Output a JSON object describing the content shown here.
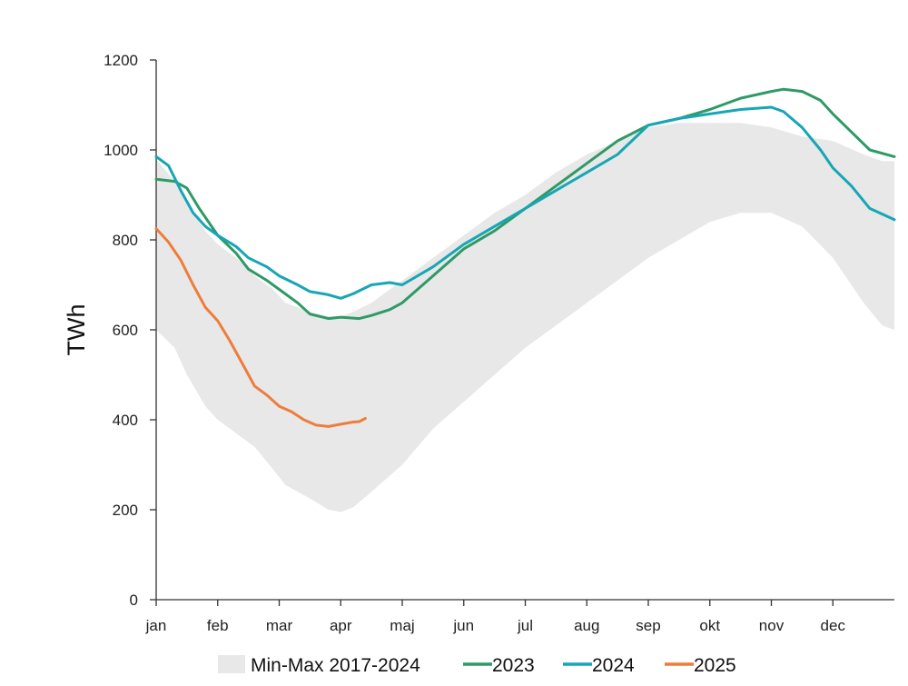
{
  "chart_data": {
    "type": "line",
    "ylabel": "TWh",
    "xlabel": "",
    "ylim": [
      0,
      1200
    ],
    "yticks": [
      0,
      200,
      400,
      600,
      800,
      1000,
      1200
    ],
    "x_months": [
      "jan",
      "feb",
      "mar",
      "apr",
      "maj",
      "jun",
      "jul",
      "aug",
      "sep",
      "okt",
      "nov",
      "dec"
    ],
    "x_month_index_max": 12,
    "grid": false,
    "legend_position": "bottom",
    "band": {
      "name": "Min-Max 2017-2024",
      "color": "#e8e8e8",
      "x": [
        0,
        0.3,
        0.5,
        0.8,
        1.0,
        1.3,
        1.6,
        1.9,
        2.1,
        2.5,
        2.8,
        3.0,
        3.2,
        3.5,
        4.0,
        4.5,
        5.0,
        5.5,
        6.0,
        6.5,
        7.0,
        7.5,
        8.0,
        8.5,
        9.0,
        9.5,
        10.0,
        10.5,
        11.0,
        11.5,
        11.8,
        12.0
      ],
      "min": [
        600,
        560,
        500,
        430,
        400,
        370,
        340,
        290,
        255,
        225,
        200,
        195,
        205,
        240,
        300,
        380,
        440,
        500,
        560,
        610,
        660,
        710,
        760,
        800,
        840,
        860,
        860,
        830,
        760,
        660,
        610,
        600
      ],
      "max": [
        980,
        930,
        880,
        820,
        790,
        760,
        720,
        690,
        660,
        640,
        630,
        630,
        640,
        660,
        710,
        760,
        810,
        860,
        900,
        950,
        990,
        1020,
        1050,
        1060,
        1060,
        1060,
        1050,
        1030,
        1020,
        990,
        975,
        975
      ]
    },
    "series": [
      {
        "name": "2023",
        "color": "#2e9a66",
        "x": [
          0,
          0.3,
          0.5,
          0.7,
          1.0,
          1.3,
          1.5,
          1.8,
          2.0,
          2.3,
          2.5,
          2.8,
          3.0,
          3.3,
          3.5,
          3.8,
          4.0,
          4.5,
          5.0,
          5.5,
          6.0,
          6.5,
          7.0,
          7.5,
          8.0,
          8.5,
          9.0,
          9.5,
          10.0,
          10.2,
          10.5,
          10.8,
          11.0,
          11.3,
          11.6,
          12.0
        ],
        "values": [
          935,
          930,
          915,
          870,
          810,
          770,
          735,
          710,
          690,
          660,
          635,
          625,
          628,
          625,
          632,
          645,
          660,
          720,
          780,
          820,
          870,
          920,
          970,
          1020,
          1055,
          1070,
          1090,
          1115,
          1130,
          1135,
          1130,
          1110,
          1080,
          1040,
          1000,
          985
        ]
      },
      {
        "name": "2024",
        "color": "#17a6b5",
        "x": [
          0,
          0.2,
          0.4,
          0.6,
          0.8,
          1.0,
          1.3,
          1.5,
          1.8,
          2.0,
          2.3,
          2.5,
          2.8,
          3.0,
          3.2,
          3.5,
          3.8,
          4.0,
          4.5,
          5.0,
          5.5,
          6.0,
          6.5,
          7.0,
          7.5,
          8.0,
          8.5,
          9.0,
          9.5,
          10.0,
          10.2,
          10.5,
          10.8,
          11.0,
          11.3,
          11.6,
          12.0
        ],
        "values": [
          985,
          965,
          910,
          860,
          830,
          810,
          785,
          760,
          740,
          720,
          700,
          685,
          678,
          670,
          680,
          700,
          705,
          700,
          740,
          790,
          830,
          870,
          910,
          950,
          990,
          1055,
          1070,
          1080,
          1090,
          1095,
          1085,
          1050,
          1000,
          960,
          920,
          870,
          845
        ]
      },
      {
        "name": "2025",
        "color": "#ee7d3b",
        "x": [
          0,
          0.2,
          0.4,
          0.6,
          0.8,
          1.0,
          1.2,
          1.4,
          1.6,
          1.8,
          2.0,
          2.2,
          2.4,
          2.6,
          2.8,
          3.0,
          3.2,
          3.3,
          3.4
        ],
        "values": [
          825,
          795,
          755,
          700,
          650,
          620,
          575,
          525,
          475,
          455,
          430,
          418,
          400,
          388,
          385,
          390,
          395,
          396,
          403
        ]
      }
    ]
  }
}
